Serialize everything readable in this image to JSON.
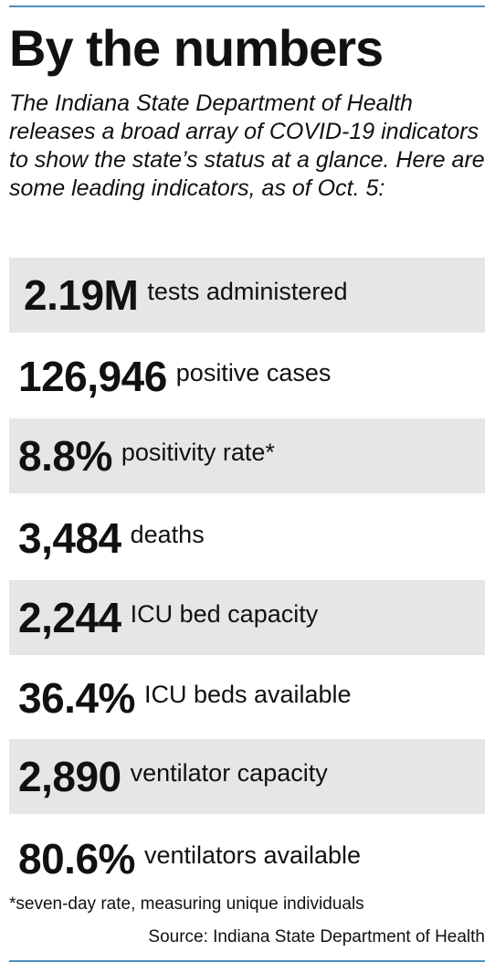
{
  "header": {
    "title": "By the numbers",
    "intro": "The Indiana State Department of Health releases a broad array of COVID-19 indicators to show the state’s status at a glance. Here are some leading indicators, as of Oct. 5:"
  },
  "stats": [
    {
      "value": "2.19M",
      "label": "tests administered",
      "shaded": true
    },
    {
      "value": "126,946",
      "label": "positive cases",
      "shaded": false
    },
    {
      "value": "8.8%",
      "label": "positivity rate*",
      "shaded": true
    },
    {
      "value": "3,484",
      "label": "deaths",
      "shaded": false
    },
    {
      "value": "2,244",
      "label": "ICU bed capacity",
      "shaded": true
    },
    {
      "value": "36.4%",
      "label": "ICU beds available",
      "shaded": false
    },
    {
      "value": "2,890",
      "label": "ventilator capacity",
      "shaded": true
    },
    {
      "value": "80.6%",
      "label": "ventilators available",
      "shaded": false
    }
  ],
  "footnote": "*seven-day rate, measuring unique individuals",
  "source": "Source: Indiana State Department of Health",
  "colors": {
    "accent_rule": "#4a8fc0",
    "row_shade": "#e6e6e6",
    "text": "#111111"
  }
}
